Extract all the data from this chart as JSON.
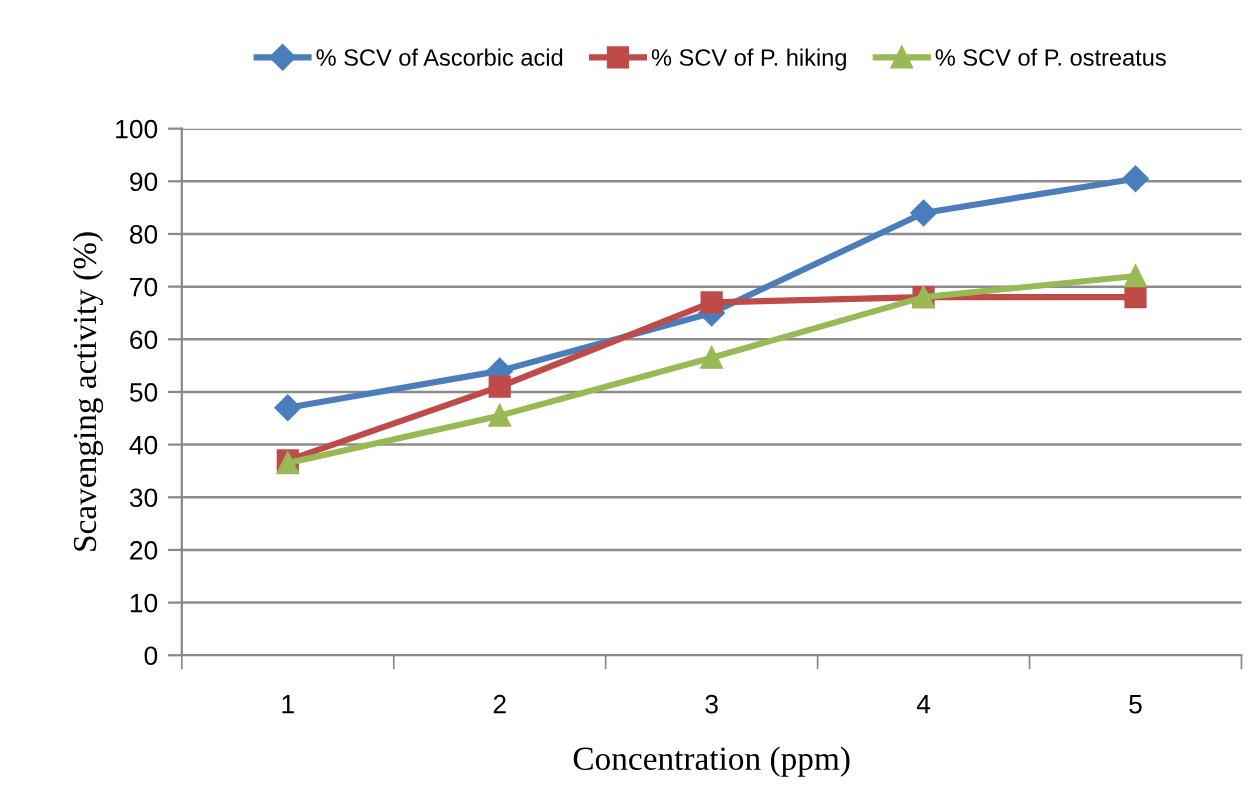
{
  "chart_data": {
    "type": "line",
    "xlabel": "Concentration (ppm)",
    "ylabel": "Scavenging activity (%)",
    "categories": [
      "1",
      "2",
      "3",
      "4",
      "5"
    ],
    "series": [
      {
        "name": "% SCV of Ascorbic acid",
        "color": "#4a7ebb",
        "marker": "diamond",
        "values": [
          47,
          54,
          65,
          84,
          90.5
        ]
      },
      {
        "name": "% SCV of P. hiking",
        "color": "#be4b48",
        "marker": "square",
        "values": [
          37,
          51,
          67,
          68,
          68
        ]
      },
      {
        "name": "% SCV of P. ostreatus",
        "color": "#98b954",
        "marker": "triangle",
        "values": [
          36.5,
          45.5,
          56.5,
          68,
          72
        ]
      }
    ],
    "ylim": [
      0,
      100
    ],
    "yticks": [
      0,
      10,
      20,
      30,
      40,
      50,
      60,
      70,
      80,
      90,
      100
    ],
    "grid": "y",
    "legend": "top",
    "line_style": "solid"
  }
}
